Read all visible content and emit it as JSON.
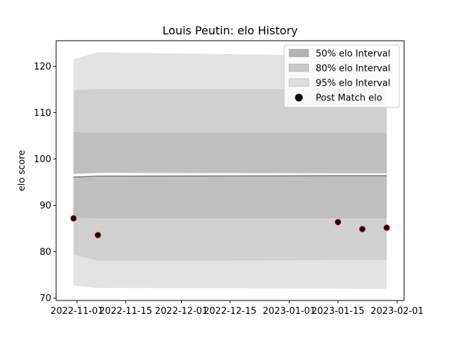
{
  "chart_data": {
    "type": "line",
    "title": "Louis Peutin: elo History",
    "xlabel": "",
    "ylabel": "elo score",
    "xlim": [
      "2022-10-26",
      "2023-02-03"
    ],
    "ylim": [
      69.5,
      125.5
    ],
    "x_ticks": [
      "2022-11-01",
      "2022-11-15",
      "2022-12-01",
      "2022-12-15",
      "2023-01-01",
      "2023-01-15",
      "2023-02-01"
    ],
    "y_ticks": [
      70,
      80,
      90,
      100,
      110,
      120
    ],
    "x": [
      "2022-10-31",
      "2022-11-07",
      "2023-01-15",
      "2023-01-22",
      "2023-01-29"
    ],
    "series": [
      {
        "name": "Mean elo",
        "values": [
          96.1,
          96.3,
          96.4,
          96.4,
          96.4
        ],
        "color": "#777777"
      },
      {
        "name": "Post Match elo",
        "values": [
          87.2,
          83.6,
          86.4,
          84.9,
          85.2
        ],
        "color": "#000000",
        "edgecolor": "#cc0000"
      }
    ],
    "bands": [
      {
        "name": "95% elo Interval",
        "upper": [
          121.5,
          123.0,
          122.3,
          122.2,
          122.2
        ],
        "lower": [
          72.7,
          72.2,
          72.1,
          72.0,
          72.0
        ],
        "color": "#e3e3e3"
      },
      {
        "name": "80% elo Interval",
        "upper": [
          114.8,
          115.1,
          115.1,
          115.1,
          115.1
        ],
        "lower": [
          79.4,
          78.1,
          78.2,
          78.2,
          78.2
        ],
        "color": "#d0d0d0"
      },
      {
        "name": "50% elo Interval",
        "upper": [
          105.8,
          105.6,
          105.6,
          105.6,
          105.6
        ],
        "lower": [
          87.4,
          87.2,
          87.2,
          87.2,
          87.2
        ],
        "color": "#bfbfbf"
      }
    ],
    "white_band": {
      "upper": [
        96.8,
        97.0,
        96.9,
        96.9,
        96.9
      ],
      "lower": [
        96.0,
        96.2,
        96.3,
        96.3,
        96.3
      ]
    },
    "legend": {
      "placement": "top-right",
      "entries": [
        {
          "label": "50% elo Interval",
          "kind": "patch",
          "color": "#b3b3b3"
        },
        {
          "label": "80% elo Interval",
          "kind": "patch",
          "color": "#c8c8c8"
        },
        {
          "label": "95% elo Interval",
          "kind": "patch",
          "color": "#e0e0e0"
        },
        {
          "label": "Post Match elo",
          "kind": "marker",
          "color": "#000000"
        }
      ]
    },
    "grid": false
  }
}
